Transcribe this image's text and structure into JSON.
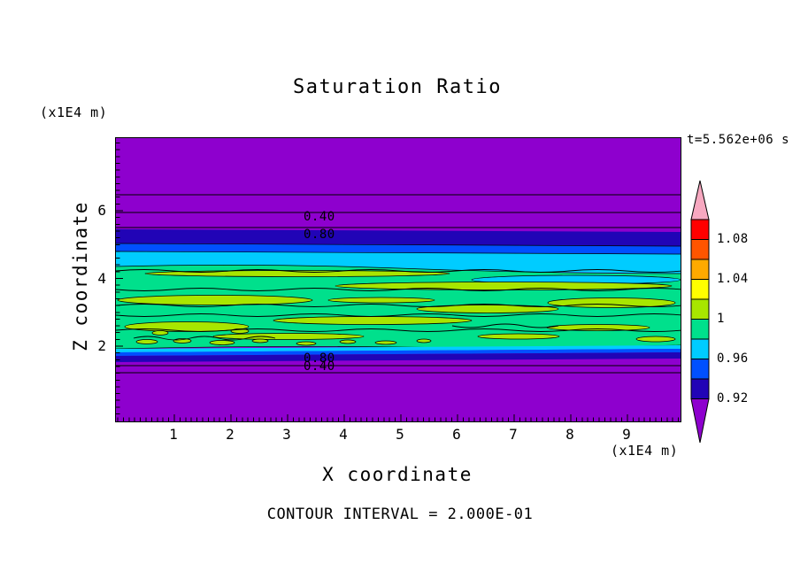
{
  "chart_data": {
    "type": "heatmap",
    "style": "filled contour plot with labeled contour lines",
    "title": "Saturation Ratio",
    "time_annotation": "t=5.562e+06 s",
    "xlabel": "X coordinate",
    "ylabel": "Z coordinate",
    "x_unit_label": "(x1E4 m)",
    "y_unit_label": "(x1E4 m)",
    "x_ticks": [
      "1",
      "2",
      "3",
      "4",
      "5",
      "6",
      "7",
      "8",
      "9"
    ],
    "y_ticks": [
      "6",
      "4",
      "2"
    ],
    "xlim": [
      0,
      10
    ],
    "ylim": [
      0,
      7
    ],
    "contour_interval_label": "CONTOUR INTERVAL = 2.000E-01",
    "contour_interval": 0.2,
    "contour_line_labels": {
      "upper": [
        "0.40",
        "0.80"
      ],
      "lower": [
        "0.80",
        "0.40"
      ]
    },
    "colorbar": {
      "tick_labels": [
        "1.08",
        "1.04",
        "1",
        "0.96",
        "0.92"
      ],
      "segments_top_to_bottom": [
        {
          "color_name": "pink",
          "hex": "#F7A8C0",
          "range": "> 1.10"
        },
        {
          "color_name": "red",
          "hex": "#FF0000",
          "range": "1.08 - 1.10"
        },
        {
          "color_name": "orange-red",
          "hex": "#FF5500",
          "range": "1.06 - 1.08"
        },
        {
          "color_name": "orange",
          "hex": "#FFAA00",
          "range": "1.04 - 1.06"
        },
        {
          "color_name": "yellow",
          "hex": "#FFFF00",
          "range": "1.02 - 1.04"
        },
        {
          "color_name": "yellow-green",
          "hex": "#A8E600",
          "range": "1.00 - 1.02"
        },
        {
          "color_name": "green",
          "hex": "#00E08C",
          "range": "0.98 - 1.00"
        },
        {
          "color_name": "cyan",
          "hex": "#00CCFF",
          "range": "0.96 - 0.98"
        },
        {
          "color_name": "blue",
          "hex": "#0050FF",
          "range": "0.94 - 0.96"
        },
        {
          "color_name": "navy",
          "hex": "#2104B6",
          "range": "0.92 - 0.94"
        },
        {
          "color_name": "purple",
          "hex": "#8E00CE",
          "range": "< 0.92"
        }
      ]
    },
    "field_structure_top_to_bottom": [
      {
        "zone": "top cap",
        "fill": "purple",
        "desc": "uniform low-saturation zone with horizontal contour lines labeled 0.40 and 0.80 near its base"
      },
      {
        "zone": "upper transition",
        "fill": "navy, blue, cyan horizontal bands"
      },
      {
        "zone": "middle layer",
        "fill": "green",
        "desc": "saturation ratio near 1 with elongated yellow-green streaks and wiggly contour lines; dense small contours near lower left"
      },
      {
        "zone": "lower transition",
        "fill": "thin cyan, blue, navy bands with contour lines labeled 0.80 and 0.40"
      },
      {
        "zone": "bottom cap",
        "fill": "purple"
      }
    ],
    "colors": {
      "purple": "#8E00CE",
      "navy": "#2104B6",
      "blue": "#0050FF",
      "cyan": "#00CCFF",
      "green": "#00E08C",
      "yellow_green": "#A8E600",
      "line": "#000000",
      "text": "#000000",
      "background": "#FFFFFF"
    }
  }
}
